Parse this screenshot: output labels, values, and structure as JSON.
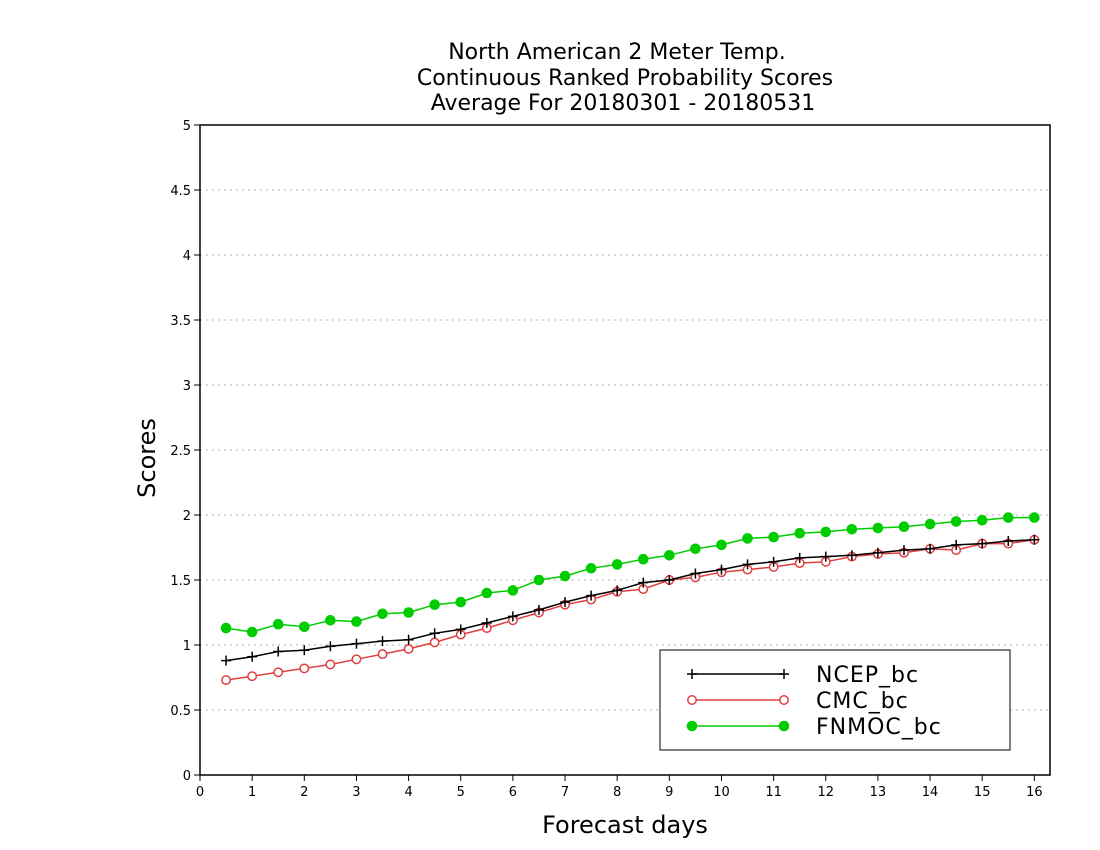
{
  "chart_data": {
    "type": "line",
    "title": [
      "North American 2 Meter Temp.",
      "Continuous Ranked Probability Scores",
      "Average For 20180301 - 20180531"
    ],
    "xlabel": "Forecast days",
    "ylabel": "Scores",
    "xlim": [
      0,
      16.3
    ],
    "ylim": [
      0,
      5
    ],
    "x_ticks": [
      0,
      1,
      2,
      3,
      4,
      5,
      6,
      7,
      8,
      9,
      10,
      11,
      12,
      13,
      14,
      15,
      16
    ],
    "y_ticks": [
      0,
      0.5,
      1,
      1.5,
      2,
      2.5,
      3,
      3.5,
      4,
      4.5,
      5
    ],
    "y_tick_labels": [
      "0",
      "0.5",
      "1",
      "1.5",
      "2",
      "2.5",
      "3",
      "3.5",
      "4",
      "4.5",
      "5"
    ],
    "grid": "horizontal dotted",
    "legend_position": "bottom-right",
    "x": [
      0.5,
      1,
      1.5,
      2,
      2.5,
      3,
      3.5,
      4,
      4.5,
      5,
      5.5,
      6,
      6.5,
      7,
      7.5,
      8,
      8.5,
      9,
      9.5,
      10,
      10.5,
      11,
      11.5,
      12,
      12.5,
      13,
      13.5,
      14,
      14.5,
      15,
      15.5,
      16
    ],
    "series": [
      {
        "name": "NCEP_bc",
        "color": "#000000",
        "marker": "plus",
        "values": [
          0.88,
          0.91,
          0.95,
          0.96,
          0.99,
          1.01,
          1.03,
          1.04,
          1.09,
          1.12,
          1.17,
          1.22,
          1.27,
          1.33,
          1.38,
          1.42,
          1.48,
          1.5,
          1.55,
          1.58,
          1.62,
          1.64,
          1.67,
          1.68,
          1.69,
          1.71,
          1.73,
          1.74,
          1.77,
          1.78,
          1.8,
          1.81
        ]
      },
      {
        "name": "CMC_bc",
        "color": "#e04040",
        "marker": "open-circle",
        "values": [
          0.73,
          0.76,
          0.79,
          0.82,
          0.85,
          0.89,
          0.93,
          0.97,
          1.02,
          1.08,
          1.13,
          1.19,
          1.25,
          1.31,
          1.35,
          1.41,
          1.43,
          1.5,
          1.52,
          1.56,
          1.58,
          1.6,
          1.63,
          1.64,
          1.68,
          1.7,
          1.71,
          1.74,
          1.73,
          1.78,
          1.78,
          1.81
        ]
      },
      {
        "name": "FNMOC_bc",
        "color": "#00cc00",
        "marker": "filled-circle",
        "values": [
          1.13,
          1.1,
          1.16,
          1.14,
          1.19,
          1.18,
          1.24,
          1.25,
          1.31,
          1.33,
          1.4,
          1.42,
          1.5,
          1.53,
          1.59,
          1.62,
          1.66,
          1.69,
          1.74,
          1.77,
          1.82,
          1.83,
          1.86,
          1.87,
          1.89,
          1.9,
          1.91,
          1.93,
          1.95,
          1.96,
          1.98,
          1.98
        ]
      }
    ]
  }
}
